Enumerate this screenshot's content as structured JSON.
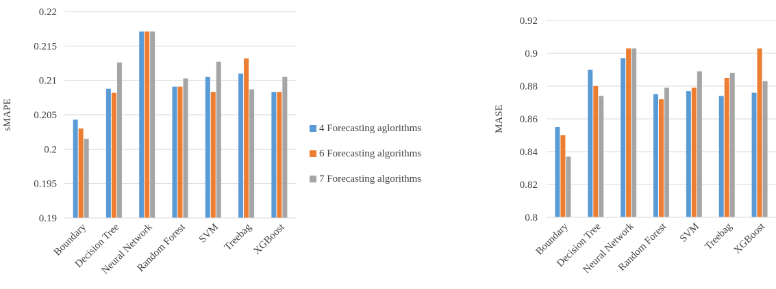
{
  "legend": {
    "items": [
      {
        "label": "4 Forecasting aglorithms",
        "color": "#5B9BD5"
      },
      {
        "label": "6 Forecasting algorithms",
        "color": "#ED7D31"
      },
      {
        "label": "7 Forecasting algorithms",
        "color": "#A5A5A5"
      }
    ]
  },
  "chart_data": [
    {
      "type": "bar",
      "categories": [
        "Boundary",
        "Decision Tree",
        "Neural Network",
        "Random Forest",
        "SVM",
        "Treebag",
        "XGBoost"
      ],
      "ylabel": "sMAPE",
      "ylim": [
        0.19,
        0.22
      ],
      "yticks": [
        "0.19",
        "0.195",
        "0.2",
        "0.205",
        "0.21",
        "0.215",
        "0.22"
      ],
      "yticks_values": [
        0.19,
        0.195,
        0.2,
        0.205,
        0.21,
        0.215,
        0.22
      ],
      "grid": true,
      "series": [
        {
          "name": "4 Forecasting aglorithms",
          "values": [
            0.2043,
            0.2088,
            0.2171,
            0.2091,
            0.2105,
            0.211,
            0.2083
          ]
        },
        {
          "name": "6 Forecasting algorithms",
          "values": [
            0.203,
            0.2082,
            0.2171,
            0.2091,
            0.2083,
            0.2132,
            0.2083
          ]
        },
        {
          "name": "7 Forecasting algorithms",
          "values": [
            0.2015,
            0.2126,
            0.2171,
            0.2103,
            0.2127,
            0.2087,
            0.2105
          ]
        }
      ]
    },
    {
      "type": "bar",
      "categories": [
        "Boundary",
        "Decision Tree",
        "Neural Network",
        "Random Forest",
        "SVM",
        "Treebag",
        "XGBoost"
      ],
      "ylabel": "MASE",
      "ylim": [
        0.8,
        0.92
      ],
      "yticks": [
        "0.8",
        "0.82",
        "0.84",
        "0.86",
        "0.88",
        "0.9",
        "0.92"
      ],
      "yticks_values": [
        0.8,
        0.82,
        0.84,
        0.86,
        0.88,
        0.9,
        0.92
      ],
      "grid": true,
      "series": [
        {
          "name": "4 Forecasting aglorithms",
          "values": [
            0.855,
            0.89,
            0.897,
            0.875,
            0.877,
            0.874,
            0.876
          ]
        },
        {
          "name": "6 Forecasting algorithms",
          "values": [
            0.85,
            0.88,
            0.903,
            0.872,
            0.879,
            0.885,
            0.903
          ]
        },
        {
          "name": "7 Forecasting algorithms",
          "values": [
            0.837,
            0.874,
            0.903,
            0.879,
            0.889,
            0.888,
            0.883
          ]
        }
      ]
    }
  ]
}
